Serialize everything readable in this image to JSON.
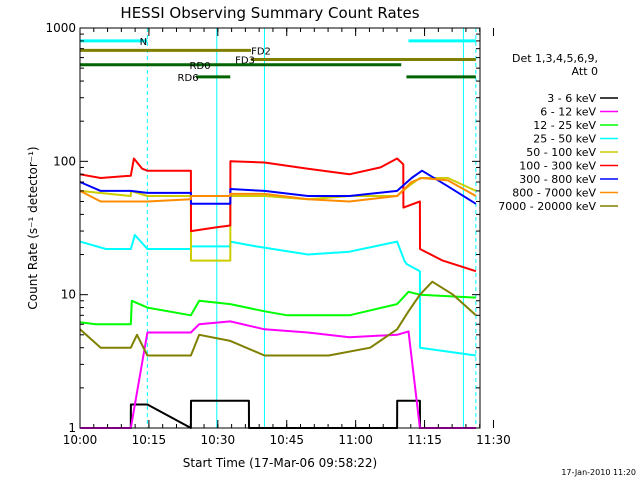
{
  "chart_data": {
    "type": "line",
    "title": "HESSI Observing Summary Count Rates",
    "xlabel": "Start Time (17-Mar-06 09:58:22)",
    "ylabel": "Count Rate (s⁻¹ detector⁻¹)",
    "yscale": "log",
    "ylim": [
      1,
      1000
    ],
    "xlim_minutes": [
      0,
      38.6
    ],
    "x_ticks": [
      "10:00",
      "10:15",
      "10:30",
      "10:45",
      "11:00",
      "11:15",
      "11:30"
    ],
    "y_ticks": [
      "1",
      "10",
      "100",
      "1000"
    ],
    "legend_header": [
      "Det 1,3,4,5,6,9,",
      "Att 0"
    ],
    "timestamp": "17-Jan-2010 11:20",
    "vlines_cyan_solid": [
      0,
      13.2,
      17.8,
      37.0
    ],
    "vlines_cyan_dashed": [
      6.5,
      38.2
    ],
    "flags": [
      {
        "label": "N",
        "color": "#00ffff",
        "y": 800,
        "segments": [
          [
            0,
            6.5
          ],
          [
            31.7,
            38.2
          ]
        ]
      },
      {
        "label": "FD2",
        "color": "#808000",
        "y": 680,
        "segments": [
          [
            0,
            16.5
          ]
        ]
      },
      {
        "label": "FD3",
        "color": "#808000",
        "y": 580,
        "segments": [
          [
            16.5,
            38.2
          ]
        ]
      },
      {
        "label": "RD0",
        "color": "#006400",
        "y": 530,
        "segments": [
          [
            0,
            31
          ]
        ]
      },
      {
        "label": "RD6",
        "color": "#006400",
        "y": 430,
        "segments": [
          [
            11.2,
            14.5
          ],
          [
            31.5,
            38.2
          ]
        ]
      }
    ],
    "series": [
      {
        "name": "3 - 6 keV",
        "color": "#000000",
        "x": [
          0,
          4.9,
          4.91,
          6.5,
          10.7,
          10.71,
          16.3,
          16.31,
          30.6,
          30.61,
          32.8,
          32.81,
          38.2
        ],
        "y": [
          1,
          1,
          1.5,
          1.5,
          1,
          1.6,
          1.6,
          1,
          1,
          1.6,
          1.6,
          1,
          1
        ]
      },
      {
        "name": "6 - 12 keV",
        "color": "#ff00ff",
        "x": [
          0,
          4.9,
          6.5,
          10.7,
          11.5,
          14.5,
          17.8,
          22.0,
          26.0,
          30.6,
          31.7,
          32.8,
          38.2
        ],
        "y": [
          1,
          1,
          5.2,
          5.2,
          6.0,
          6.3,
          5.5,
          5.2,
          4.8,
          5.0,
          5.3,
          1,
          1
        ]
      },
      {
        "name": "12 - 25 keV",
        "color": "#00ff00",
        "x": [
          0,
          1.5,
          4.9,
          5.0,
          6.5,
          10.7,
          11.5,
          14.5,
          17.8,
          20.0,
          26.0,
          30.6,
          31.7,
          32.8,
          38.2
        ],
        "y": [
          6.2,
          6.0,
          6.0,
          9.0,
          8.0,
          7.0,
          9.0,
          8.5,
          7.5,
          7.0,
          7.0,
          8.5,
          10.5,
          10.0,
          9.5
        ]
      },
      {
        "name": "25 - 50 keV",
        "color": "#00ffff",
        "x": [
          0,
          2.5,
          4.9,
          5.3,
          6.5,
          10.7,
          10.71,
          14.5,
          14.51,
          17.0,
          22.0,
          26.0,
          30.6,
          31.3,
          31.5,
          32.8,
          32.81,
          38.2
        ],
        "y": [
          25,
          22,
          22,
          28,
          22,
          22,
          23,
          23,
          25,
          23,
          20,
          21,
          25,
          18,
          17,
          15,
          4.0,
          3.5
        ]
      },
      {
        "name": "50 - 100 keV",
        "color": "#cccc00",
        "x": [
          0,
          4.9,
          4.91,
          6.5,
          10.7,
          10.71,
          13.2,
          13.21,
          14.5,
          14.51,
          17.8,
          22.0,
          26.0,
          30.6,
          31.7,
          32.8,
          34.0,
          35.5,
          38.2
        ],
        "y": [
          60,
          55,
          60,
          55,
          55,
          18,
          18,
          18,
          18,
          55,
          55,
          52,
          55,
          55,
          65,
          75,
          75,
          75,
          60
        ]
      },
      {
        "name": "100 - 300 keV",
        "color": "#ff0000",
        "x": [
          0,
          2.0,
          4.9,
          5.2,
          6.0,
          6.5,
          10.7,
          10.71,
          13.2,
          14.5,
          14.51,
          17.8,
          22.0,
          26.0,
          29.0,
          30.6,
          31.2,
          31.21,
          32.8,
          32.81,
          35.0,
          38.2
        ],
        "y": [
          80,
          75,
          78,
          105,
          88,
          85,
          85,
          30,
          32,
          33,
          100,
          98,
          88,
          80,
          90,
          105,
          95,
          45,
          50,
          22,
          18,
          15
        ]
      },
      {
        "name": "300 - 800 keV",
        "color": "#0000ff",
        "x": [
          0,
          2.0,
          4.9,
          6.5,
          10.7,
          10.71,
          14.5,
          14.51,
          17.8,
          22.0,
          26.0,
          30.6,
          32.0,
          33.0,
          35.5,
          38.2
        ],
        "y": [
          70,
          60,
          60,
          58,
          58,
          48,
          48,
          62,
          60,
          55,
          55,
          60,
          75,
          85,
          65,
          48
        ]
      },
      {
        "name": "800 - 7000 keV",
        "color": "#ff8c00",
        "x": [
          0,
          2.0,
          4.9,
          6.5,
          10.7,
          10.71,
          14.5,
          14.51,
          17.8,
          22.0,
          26.0,
          30.6,
          32.0,
          33.0,
          35.5,
          38.2
        ],
        "y": [
          60,
          50,
          50,
          50,
          52,
          55,
          55,
          57,
          57,
          52,
          50,
          55,
          70,
          75,
          72,
          55
        ]
      },
      {
        "name": "7000 - 20000 keV",
        "color": "#808000",
        "x": [
          0,
          2.0,
          4.9,
          5.5,
          6.5,
          9.0,
          10.7,
          11.5,
          14.5,
          17.8,
          20.0,
          24.0,
          28.0,
          30.6,
          31.7,
          32.8,
          34.0,
          36.0,
          38.2
        ],
        "y": [
          5.5,
          4.0,
          4.0,
          5.0,
          3.5,
          3.5,
          3.5,
          5.0,
          4.5,
          3.5,
          3.5,
          3.5,
          4.0,
          5.5,
          7.5,
          10.0,
          12.5,
          10.0,
          7.0
        ]
      }
    ]
  }
}
